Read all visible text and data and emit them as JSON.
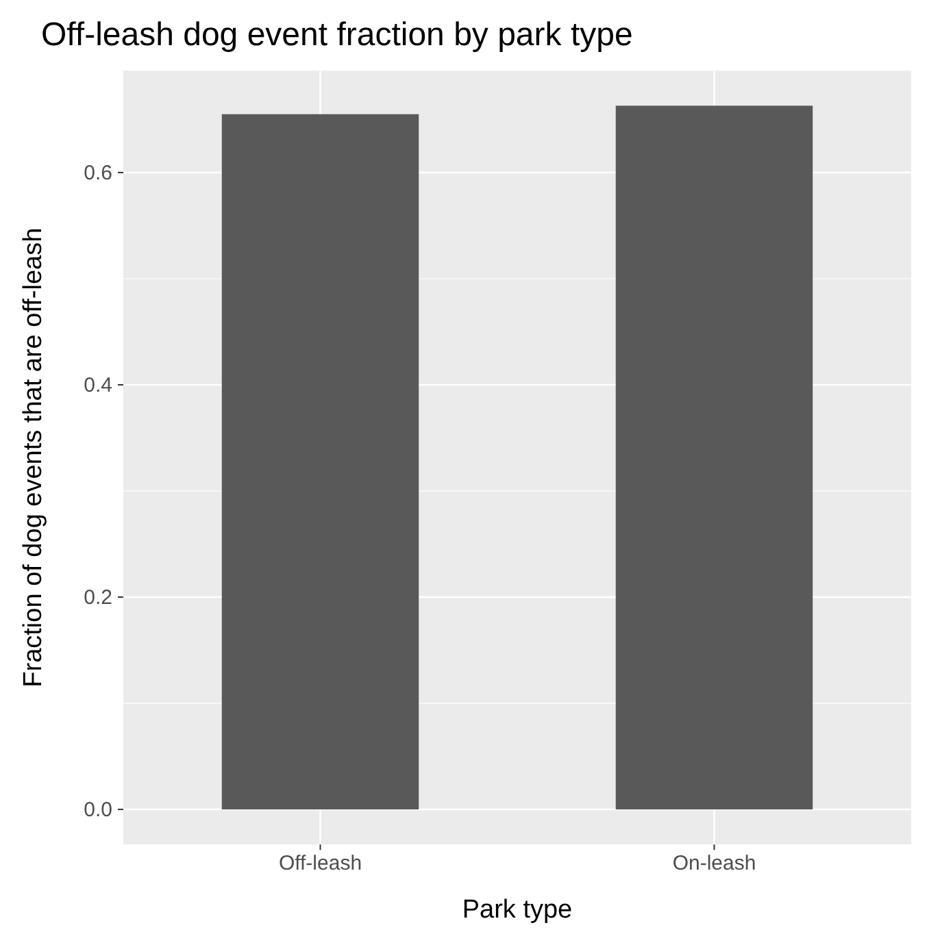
{
  "chart_data": {
    "type": "bar",
    "title": "Off-leash dog event fraction by park type",
    "xlabel": "Park type",
    "ylabel": "Fraction of dog events that are off-leash",
    "categories": [
      "Off-leash",
      "On-leash"
    ],
    "values": [
      0.655,
      0.663
    ],
    "color": "#595959",
    "ylim": [
      -0.033,
      0.696
    ],
    "yticks": [
      {
        "value": 0,
        "label": "0.0"
      },
      {
        "value": 0.2,
        "label": "0.2"
      },
      {
        "value": 0.4,
        "label": "0.4"
      },
      {
        "value": 0.6,
        "label": "0.6"
      }
    ],
    "grid": true
  }
}
